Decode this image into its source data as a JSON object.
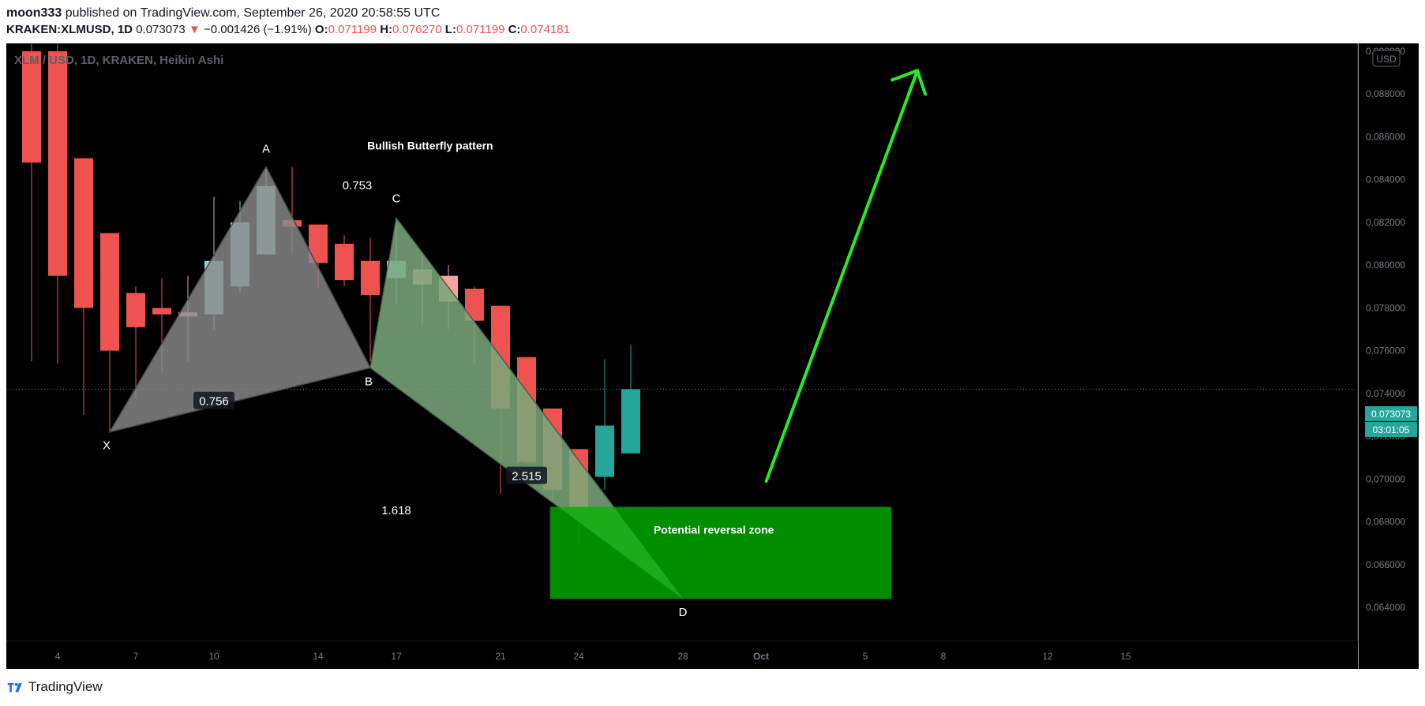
{
  "header": {
    "author": "moon333",
    "published_text": "published on TradingView.com, September 26, 2020 20:58:55 UTC",
    "symbol": "KRAKEN:XLMUSD, 1D",
    "last": "0.073073",
    "change": "−0.001426 (−1.91%)",
    "o_label": "O:",
    "o_value": "0.071199",
    "h_label": "H:",
    "h_value": "0.076270",
    "l_label": "L:",
    "l_value": "0.071199",
    "c_label": "C:",
    "c_value": "0.074181"
  },
  "footer": {
    "brand": "TradingView",
    "logo_icon": "tradingview-logo-icon"
  },
  "colors": {
    "background": "#000000",
    "bull": "#26a69a",
    "bull_light": "#8fd6d1",
    "bear": "#ef5350",
    "bear_light": "#f7a1a0",
    "pattern_fill": "#8a8a8a",
    "zone_fill": "#009900",
    "arrow": "#22ee22",
    "axis_text": "#787b86"
  },
  "chart_data": {
    "type": "candlestick",
    "title": "XLM / USD, 1D, KRAKEN, Heikin Ashi",
    "currency": "USD",
    "last_price_label": "0.073073",
    "countdown_label": "03:01:05",
    "y_ticks": [
      "0.064000",
      "0.066000",
      "0.068000",
      "0.070000",
      "0.072000",
      "0.074000",
      "0.076000",
      "0.078000",
      "0.080000",
      "0.082000",
      "0.084000",
      "0.086000",
      "0.088000",
      "0.090000"
    ],
    "ylim": [
      0.0625,
      0.091
    ],
    "x_ticks": [
      {
        "day": 4,
        "label": "4"
      },
      {
        "day": 7,
        "label": "7"
      },
      {
        "day": 10,
        "label": "10"
      },
      {
        "day": 14,
        "label": "14"
      },
      {
        "day": 17,
        "label": "17"
      },
      {
        "day": 21,
        "label": "21"
      },
      {
        "day": 24,
        "label": "24"
      },
      {
        "day": 28,
        "label": "28"
      },
      {
        "day": 31,
        "label": "Oct"
      },
      {
        "day": 35,
        "label": "5"
      },
      {
        "day": 38,
        "label": "8"
      },
      {
        "day": 42,
        "label": "12"
      },
      {
        "day": 45,
        "label": "15"
      }
    ],
    "candles": [
      {
        "day": 3,
        "open": 0.09,
        "high": 0.0905,
        "low": 0.0755,
        "close": 0.0848,
        "style": "bear"
      },
      {
        "day": 4,
        "open": 0.09,
        "high": 0.0905,
        "low": 0.0754,
        "close": 0.0795,
        "style": "bear"
      },
      {
        "day": 5,
        "open": 0.085,
        "high": 0.085,
        "low": 0.073,
        "close": 0.078,
        "style": "bear"
      },
      {
        "day": 6,
        "open": 0.0815,
        "high": 0.0815,
        "low": 0.0722,
        "close": 0.076,
        "style": "bear"
      },
      {
        "day": 7,
        "open": 0.0787,
        "high": 0.079,
        "low": 0.0738,
        "close": 0.0771,
        "style": "bear"
      },
      {
        "day": 8,
        "open": 0.078,
        "high": 0.0794,
        "low": 0.075,
        "close": 0.0777,
        "style": "bear"
      },
      {
        "day": 9,
        "open": 0.0778,
        "high": 0.0795,
        "low": 0.0755,
        "close": 0.0776,
        "style": "bear_light"
      },
      {
        "day": 10,
        "open": 0.0777,
        "high": 0.0832,
        "low": 0.077,
        "close": 0.0802,
        "style": "bull_light"
      },
      {
        "day": 11,
        "open": 0.079,
        "high": 0.083,
        "low": 0.0787,
        "close": 0.082,
        "style": "bull_light"
      },
      {
        "day": 12,
        "open": 0.0805,
        "high": 0.0845,
        "low": 0.0805,
        "close": 0.0837,
        "style": "bull_light"
      },
      {
        "day": 13,
        "open": 0.0821,
        "high": 0.0846,
        "low": 0.0805,
        "close": 0.0818,
        "style": "bear"
      },
      {
        "day": 14,
        "open": 0.0819,
        "high": 0.0819,
        "low": 0.0789,
        "close": 0.0801,
        "style": "bear"
      },
      {
        "day": 15,
        "open": 0.081,
        "high": 0.0814,
        "low": 0.079,
        "close": 0.0793,
        "style": "bear"
      },
      {
        "day": 16,
        "open": 0.0802,
        "high": 0.0813,
        "low": 0.0755,
        "close": 0.0786,
        "style": "bear"
      },
      {
        "day": 17,
        "open": 0.0794,
        "high": 0.082,
        "low": 0.0782,
        "close": 0.0802,
        "style": "bull_light"
      },
      {
        "day": 18,
        "open": 0.0798,
        "high": 0.0805,
        "low": 0.0772,
        "close": 0.0791,
        "style": "bear_light"
      },
      {
        "day": 19,
        "open": 0.0795,
        "high": 0.08,
        "low": 0.077,
        "close": 0.0783,
        "style": "bear_light"
      },
      {
        "day": 20,
        "open": 0.0789,
        "high": 0.079,
        "low": 0.0754,
        "close": 0.0774,
        "style": "bear"
      },
      {
        "day": 21,
        "open": 0.0781,
        "high": 0.0781,
        "low": 0.0693,
        "close": 0.0733,
        "style": "bear"
      },
      {
        "day": 22,
        "open": 0.0757,
        "high": 0.0757,
        "low": 0.0707,
        "close": 0.0708,
        "style": "bear"
      },
      {
        "day": 23,
        "open": 0.0733,
        "high": 0.0733,
        "low": 0.0689,
        "close": 0.0695,
        "style": "bear"
      },
      {
        "day": 24,
        "open": 0.0714,
        "high": 0.0714,
        "low": 0.0668,
        "close": 0.0686,
        "style": "bear"
      },
      {
        "day": 25,
        "open": 0.0701,
        "high": 0.0756,
        "low": 0.0695,
        "close": 0.0725,
        "style": "bull"
      },
      {
        "day": 26,
        "open": 0.0712,
        "high": 0.0763,
        "low": 0.0712,
        "close": 0.0742,
        "style": "bull"
      }
    ],
    "pattern": {
      "name": "Bullish Butterfly pattern",
      "points": [
        {
          "label": "X",
          "day": 6,
          "price": 0.0722
        },
        {
          "label": "A",
          "day": 12,
          "price": 0.0846
        },
        {
          "label": "B",
          "day": 16,
          "price": 0.0752
        },
        {
          "label": "C",
          "day": 17,
          "price": 0.0822
        },
        {
          "label": "D",
          "day": 28,
          "price": 0.0644
        }
      ],
      "ratios": [
        {
          "label": "0.753",
          "day": 15.5,
          "price": 0.0837,
          "boxed": false
        },
        {
          "label": "0.756",
          "day": 10,
          "price": 0.0736,
          "boxed": true
        },
        {
          "label": "2.515",
          "day": 22.0,
          "price": 0.0701,
          "boxed": true
        },
        {
          "label": "1.618",
          "day": 17,
          "price": 0.0685,
          "boxed": false
        }
      ]
    },
    "zone": {
      "label": "Potential reversal zone",
      "day_start": 22.9,
      "day_end": 36.0,
      "top": 0.0687,
      "bottom": 0.0644
    },
    "arrow": {
      "from_day": 31.2,
      "from_price": 0.0699,
      "to_day": 37.0,
      "to_price": 0.0891
    },
    "current_price_line": 0.0742
  }
}
